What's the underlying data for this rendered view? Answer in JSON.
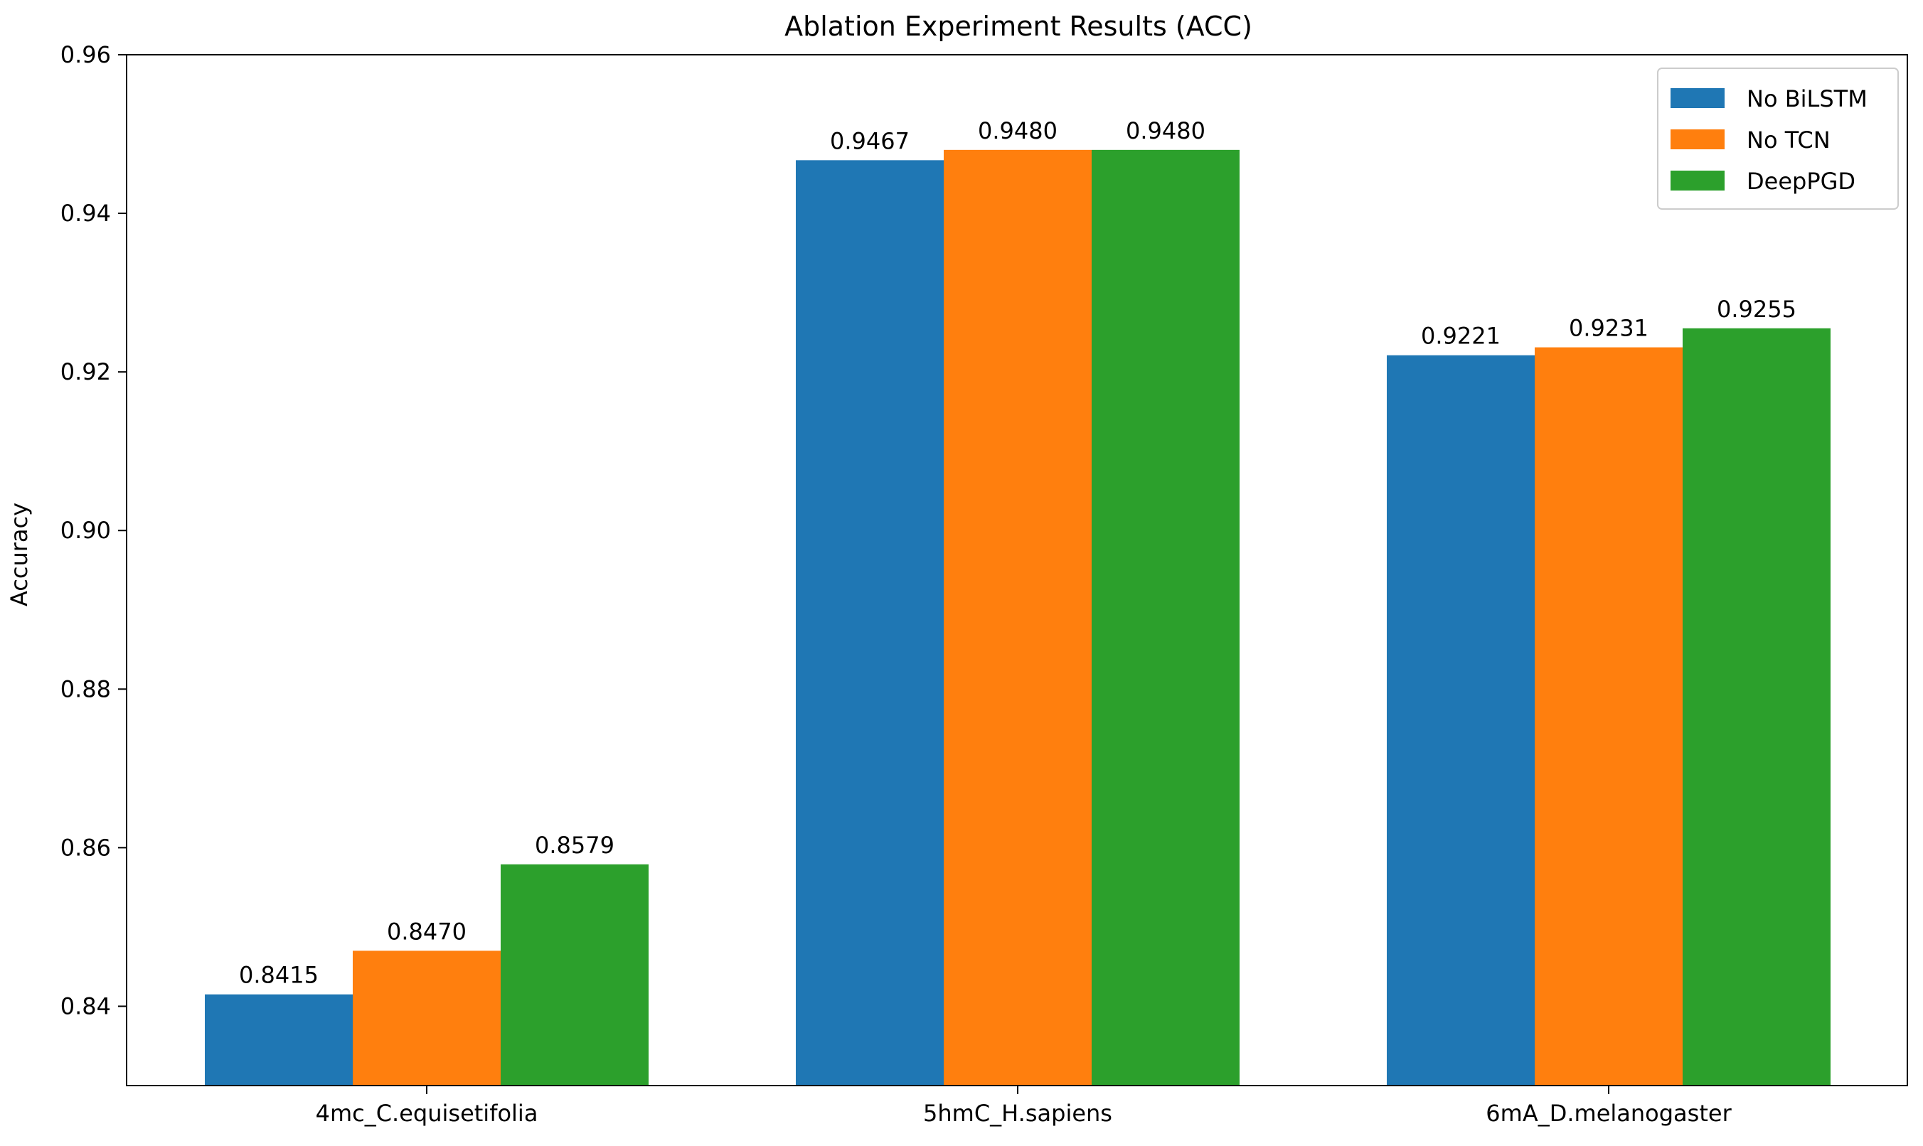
{
  "chart_data": {
    "type": "bar",
    "title": "Ablation Experiment Results (ACC)",
    "xlabel": "",
    "ylabel": "Accuracy",
    "categories": [
      "4mc_C.equisetifolia",
      "5hmC_H.sapiens",
      "6mA_D.melanogaster"
    ],
    "series": [
      {
        "name": "No BiLSTM",
        "color": "#1f77b4",
        "values": [
          0.8415,
          0.9467,
          0.9221
        ],
        "labels": [
          "0.8415",
          "0.9467",
          "0.9221"
        ]
      },
      {
        "name": "No TCN",
        "color": "#ff7f0e",
        "values": [
          0.847,
          0.948,
          0.9231
        ],
        "labels": [
          "0.8470",
          "0.9480",
          "0.9231"
        ]
      },
      {
        "name": "DeepPGD",
        "color": "#2ca02c",
        "values": [
          0.8579,
          0.948,
          0.9255
        ],
        "labels": [
          "0.8579",
          "0.9480",
          "0.9255"
        ]
      }
    ],
    "ylim": [
      0.83,
      0.96
    ],
    "yticks": [
      0.84,
      0.86,
      0.88,
      0.9,
      0.92,
      0.94,
      0.96
    ],
    "ytick_labels": [
      "0.84",
      "0.86",
      "0.88",
      "0.90",
      "0.92",
      "0.94",
      "0.96"
    ],
    "grid": false,
    "legend_position": "top-right"
  }
}
